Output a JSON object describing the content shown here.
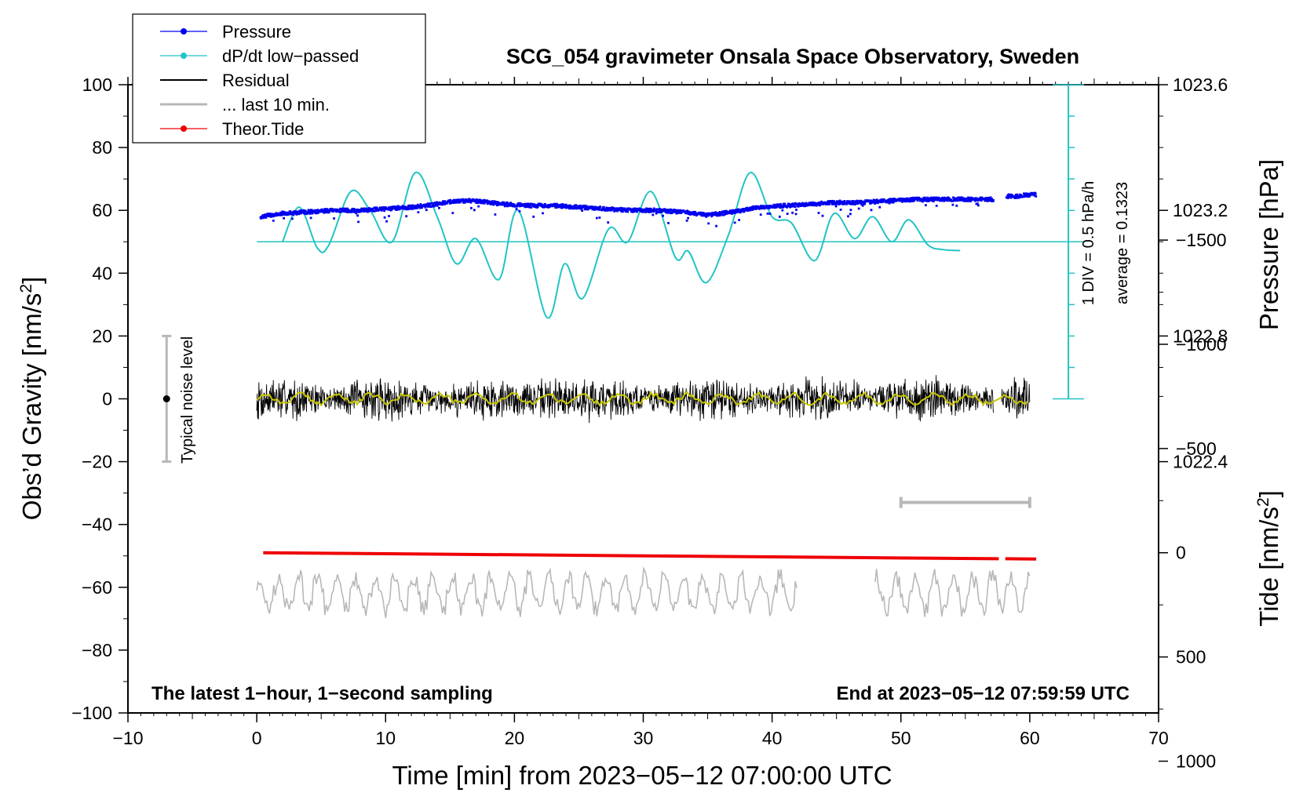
{
  "chart_data": {
    "type": "line",
    "title": "SCG_054 gravimeter Onsala Space Observatory, Sweden",
    "xlabel": "Time [min] from 2023−05−12 07:00:00 UTC",
    "ylabel_left": "Obs’d Gravity [nm/s²]",
    "ylabel_left_text": "Obs’d Gravity [nm/s",
    "ylabel_left_sup": "2",
    "ylabel_left_end": "]",
    "ylabel_right_pressure": "Pressure [hPa]",
    "ylabel_right_tide": "Tide [nm/s²]",
    "ylabel_right_tide_text": "Tide [nm/s",
    "ylabel_right_tide_sup": "2",
    "ylabel_right_tide_end": "]",
    "xlim": [
      -10,
      70
    ],
    "ylim": [
      -100,
      100
    ],
    "x_ticks": [
      -10,
      0,
      10,
      20,
      30,
      40,
      50,
      60,
      70
    ],
    "x_tick_labels": [
      "−10",
      "0",
      "10",
      "20",
      "30",
      "40",
      "50",
      "60",
      "70"
    ],
    "y_ticks": [
      -100,
      -80,
      -60,
      -40,
      -20,
      0,
      20,
      40,
      60,
      80,
      100
    ],
    "y_tick_labels": [
      "−100",
      "−80",
      "−60",
      "−40",
      "−20",
      "0",
      "20",
      "40",
      "60",
      "80",
      "100"
    ],
    "pressure_axis": {
      "ticks": [
        1022.4,
        1022.8,
        1023.2,
        1023.6
      ],
      "tick_labels": [
        "1022.4",
        "1022.8",
        "1023.2",
        "1023.6"
      ]
    },
    "tide_axis": {
      "ticks": [
        -1500,
        -1000,
        -500,
        0,
        500,
        1000
      ],
      "tick_labels": [
        "−1500",
        "−1000",
        "−500",
        "0",
        "500",
        "1000"
      ]
    },
    "dpdt_scale": {
      "label1": "1 DIV = 0.5 hPa/h",
      "label2": "average = 0.1323",
      "x": 63,
      "y_range": [
        0,
        100
      ],
      "baseline_y": 50
    },
    "noise_bar": {
      "x": -7,
      "y": 0,
      "range": [
        -20,
        20
      ],
      "label": "Typical noise level"
    },
    "gray_scale_bar": {
      "x_range": [
        50,
        60
      ],
      "y": -33
    },
    "legend": {
      "placement": "top-left",
      "entries": [
        {
          "label": "Pressure",
          "color": "#0000ee",
          "marker": true
        },
        {
          "label": "dP/dt low−passed",
          "color": "#22c4c4",
          "marker": true
        },
        {
          "label": "Residual",
          "color": "#000000",
          "marker": false
        },
        {
          "label": "... last 10 min.",
          "color": "#b8b8b8",
          "marker": false
        },
        {
          "label": "Theor.Tide",
          "color": "#ee0000",
          "marker": true
        }
      ]
    },
    "footer_left": "The latest 1−hour, 1−second sampling",
    "footer_right": "End at 2023−05−12 07:59:59 UTC",
    "series": [
      {
        "name": "Pressure",
        "color": "#0000ee",
        "x": [
          0.3,
          2,
          4,
          6,
          8,
          10,
          12,
          14,
          15.5,
          17,
          19,
          21,
          23,
          25,
          27,
          29,
          31,
          33,
          35,
          37,
          39,
          41,
          43,
          45,
          47,
          49,
          51,
          53,
          55,
          57
        ],
        "values": [
          58,
          59,
          59.5,
          60,
          60,
          60.5,
          61,
          62,
          63,
          63,
          62,
          61.5,
          61.5,
          61,
          60.5,
          60,
          60,
          59.5,
          58.5,
          59.5,
          61,
          61.5,
          62,
          62.5,
          62.5,
          63,
          63.5,
          63.5,
          63.5,
          63.5
        ],
        "x2": [
          58.2,
          59,
          60,
          60.5
        ],
        "values2": [
          64.5,
          64.5,
          65,
          65
        ]
      },
      {
        "name": "dP/dt low-passed",
        "color": "#22c4c4",
        "x": [
          2,
          3.3,
          4.7,
          5.6,
          7.3,
          8.8,
          10.5,
          12.3,
          14,
          15.5,
          17,
          18.8,
          20.3,
          22.5,
          23.9,
          25.3,
          27.3,
          28.8,
          30.6,
          32.5,
          33.5,
          34.9,
          36.6,
          38.3,
          40,
          41.5,
          43.3,
          44.8,
          46.4,
          47.8,
          49.3,
          50.6,
          52.1,
          53.3,
          54.6
        ],
        "values": [
          50,
          61,
          48,
          49,
          66,
          60,
          50,
          72,
          58,
          43,
          51,
          38,
          60,
          26,
          43,
          32,
          54,
          50,
          66,
          45,
          47,
          37,
          52,
          72,
          58,
          56,
          44,
          59,
          51,
          58,
          50,
          57,
          49,
          47.5,
          47.2
        ]
      },
      {
        "name": "Residual",
        "color": "#000000",
        "x_range": [
          0,
          60
        ],
        "amplitude": 8,
        "gaps": [
          [
            57.2,
            57.8
          ]
        ],
        "smoothed_color": "#c8c800"
      },
      {
        "name": "... last 10 min.",
        "color": "#b8b8b8",
        "x_range": [
          0,
          60
        ],
        "center": -62,
        "amplitude": 8,
        "gaps": [
          [
            42,
            48
          ]
        ]
      },
      {
        "name": "Theor.Tide",
        "color": "#ee0000",
        "x": [
          0.5,
          60.5
        ],
        "values": [
          -49,
          -51
        ],
        "gaps": [
          [
            57.6,
            58.1
          ]
        ]
      }
    ]
  }
}
